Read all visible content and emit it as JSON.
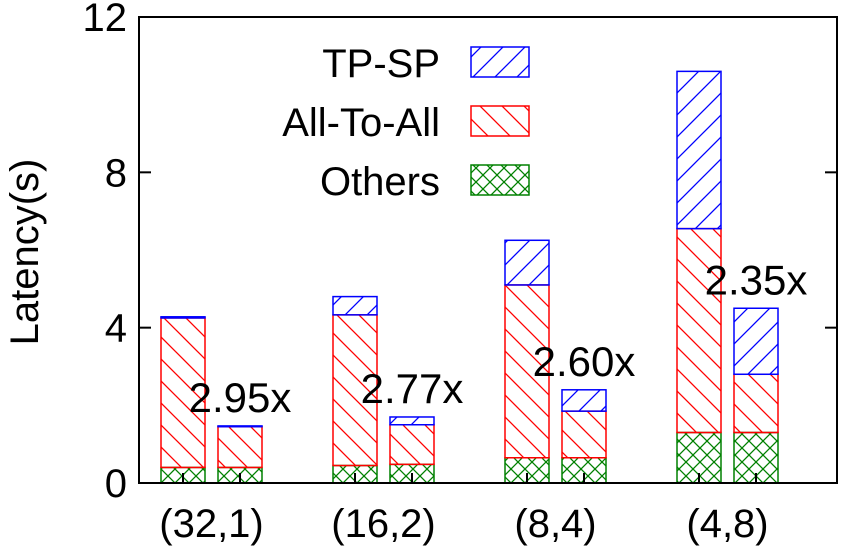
{
  "chart_data": {
    "type": "bar",
    "stacked": true,
    "ylabel": "Latency(s)",
    "ylim": [
      0,
      12
    ],
    "yticks": [
      "0",
      "4",
      "8",
      "12"
    ],
    "categories": [
      "(32,1)",
      "(16,2)",
      "(8,4)",
      "(4,8)"
    ],
    "bars_per_category": 2,
    "series": [
      {
        "name": "Others",
        "color": "#008000",
        "pattern": "crosshatch",
        "values": [
          [
            0.4,
            0.4
          ],
          [
            0.45,
            0.48
          ],
          [
            0.65,
            0.65
          ],
          [
            1.3,
            1.3
          ]
        ]
      },
      {
        "name": "All-To-All",
        "color": "#ff0000",
        "pattern": "back-diagonal",
        "values": [
          [
            3.85,
            1.05
          ],
          [
            3.88,
            1.02
          ],
          [
            4.45,
            1.2
          ],
          [
            5.25,
            1.5
          ]
        ]
      },
      {
        "name": "TP-SP",
        "color": "#0000ff",
        "pattern": "forward-diagonal",
        "values": [
          [
            0.03,
            0.02
          ],
          [
            0.47,
            0.2
          ],
          [
            1.15,
            0.55
          ],
          [
            4.05,
            1.7
          ]
        ]
      }
    ],
    "legend_order": [
      "TP-SP",
      "All-To-All",
      "Others"
    ],
    "legend_position": "top-center",
    "annotations": [
      "2.95x",
      "2.77x",
      "2.60x",
      "2.35x"
    ],
    "grid": false
  }
}
